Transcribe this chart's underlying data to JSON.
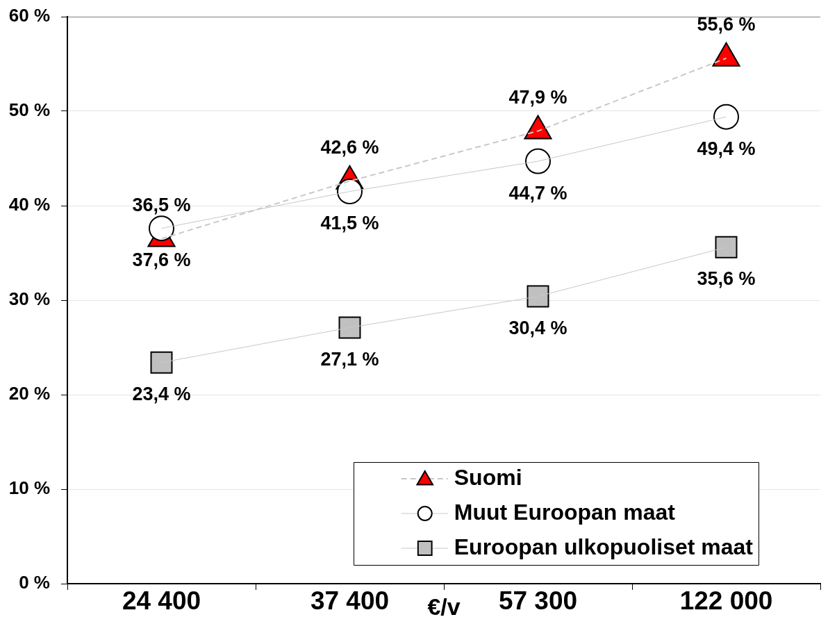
{
  "chart_data": {
    "type": "line",
    "categories": [
      "24 400",
      "37 400",
      "57 300",
      "122 000"
    ],
    "xlabel": "€/v",
    "ylim": [
      0,
      60
    ],
    "yticks": [
      {
        "value": 0,
        "label": "0 %"
      },
      {
        "value": 10,
        "label": "10 %"
      },
      {
        "value": 20,
        "label": "20 %"
      },
      {
        "value": 30,
        "label": "30 %"
      },
      {
        "value": 40,
        "label": "40 %"
      },
      {
        "value": 50,
        "label": "50 %"
      },
      {
        "value": 60,
        "label": "60 %"
      }
    ],
    "grid": "y",
    "legend": "bottom right",
    "series": [
      {
        "name": "Suomi",
        "color": "#ff0000",
        "marker": "triangle",
        "line_style": "dashed",
        "values": [
          36.5,
          42.6,
          47.9,
          55.6
        ],
        "value_labels": [
          "36,5 %",
          "42,6 %",
          "47,9 %",
          "55,6 %"
        ]
      },
      {
        "name": "Muut Euroopan maat",
        "color": "#ffffff",
        "marker": "circle",
        "line_style": "solid",
        "values": [
          37.6,
          41.5,
          44.7,
          49.4
        ],
        "value_labels": [
          "37,6 %",
          "41,5 %",
          "44,7 %",
          "49,4 %"
        ]
      },
      {
        "name": "Euroopan ulkopuoliset maat",
        "color": "#c0c0c0",
        "marker": "square",
        "line_style": "solid",
        "values": [
          23.4,
          27.1,
          30.4,
          35.6
        ],
        "value_labels": [
          "23,4 %",
          "27,1 %",
          "30,4 %",
          "35,6 %"
        ]
      }
    ]
  }
}
